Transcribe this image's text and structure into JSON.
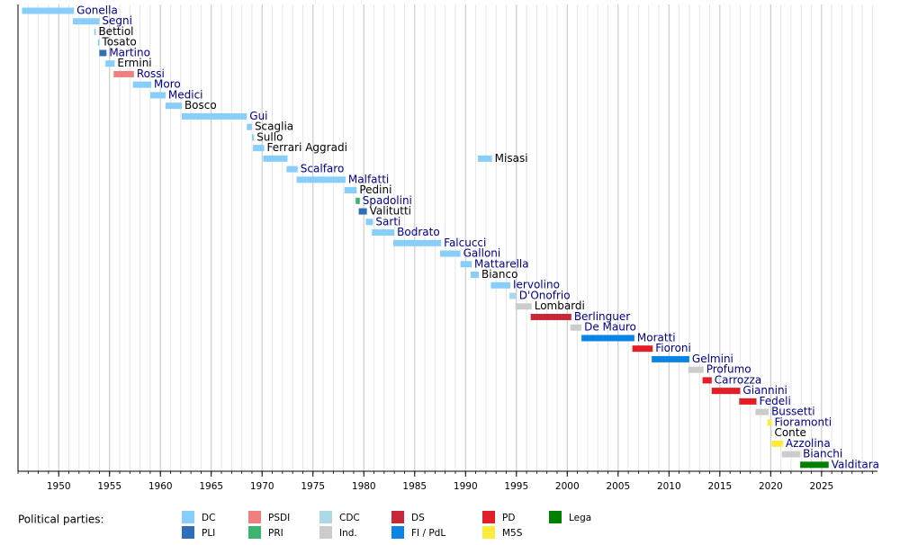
{
  "chart_data": {
    "type": "timeline",
    "xlim": [
      1946,
      2030.5
    ],
    "xticks": [
      1950,
      1955,
      1960,
      1965,
      1970,
      1975,
      1980,
      1985,
      1990,
      1995,
      2000,
      2005,
      2010,
      2015,
      2020,
      2025
    ],
    "minor_xticks": [
      1946,
      1947,
      1948,
      1949,
      1950,
      1951,
      1952,
      1953,
      1954,
      1955,
      1956,
      1957,
      1958,
      1959,
      1960,
      1961,
      1962,
      1963,
      1964,
      1965,
      1966,
      1967,
      1968,
      1969,
      1970,
      1971,
      1972,
      1973,
      1974,
      1975,
      1976,
      1977,
      1978,
      1979,
      1980,
      1981,
      1982,
      1983,
      1984,
      1985,
      1986,
      1987,
      1988,
      1989,
      1990,
      1991,
      1992,
      1993,
      1994,
      1995,
      1996,
      1997,
      1998,
      1999,
      2000,
      2001,
      2002,
      2003,
      2004,
      2005,
      2006,
      2007,
      2008,
      2009,
      2010,
      2011,
      2012,
      2013,
      2014,
      2015,
      2016,
      2017,
      2018,
      2019,
      2020,
      2021,
      2022,
      2023,
      2024,
      2025,
      2026,
      2027,
      2028,
      2029,
      2030
    ],
    "grid": true,
    "legend_title": "Political parties:",
    "parties": [
      {
        "name": "DC",
        "color": "#87cefa"
      },
      {
        "name": "PLI",
        "color": "#2f6fb8"
      },
      {
        "name": "PSDI",
        "color": "#f08080"
      },
      {
        "name": "PRI",
        "color": "#3cb371"
      },
      {
        "name": "CDC",
        "color": "#add8e6"
      },
      {
        "name": "Ind.",
        "color": "#cccccc"
      },
      {
        "name": "DS",
        "color": "#c72837"
      },
      {
        "name": "FI / PdL",
        "color": "#0a84e6"
      },
      {
        "name": "PD",
        "color": "#e31e24"
      },
      {
        "name": "M5S",
        "color": "#ffeb3b"
      },
      {
        "name": "Lega",
        "color": "#008000"
      }
    ],
    "rows": [
      {
        "name": "Gonella",
        "party": "DC",
        "label_color": "#00008b",
        "periods": [
          [
            1946.4,
            1951.5
          ]
        ]
      },
      {
        "name": "Segni",
        "party": "DC",
        "label_color": "#00008b",
        "periods": [
          [
            1951.4,
            1954.0
          ]
        ]
      },
      {
        "name": "Bettiol",
        "party": "DC",
        "label_color": "#000000",
        "periods": [
          [
            1953.5,
            1953.65
          ]
        ]
      },
      {
        "name": "Tosato",
        "party": "DC",
        "label_color": "#000000",
        "periods": [
          [
            1953.85,
            1954.0
          ]
        ]
      },
      {
        "name": "Martino",
        "party": "PLI",
        "label_color": "#00008b",
        "periods": [
          [
            1954.0,
            1954.7
          ]
        ]
      },
      {
        "name": "Ermini",
        "party": "DC",
        "label_color": "#000000",
        "periods": [
          [
            1954.6,
            1955.5
          ]
        ]
      },
      {
        "name": "Rossi",
        "party": "PSDI",
        "label_color": "#00008b",
        "periods": [
          [
            1955.4,
            1957.4
          ]
        ]
      },
      {
        "name": "Moro",
        "party": "DC",
        "label_color": "#00008b",
        "periods": [
          [
            1957.3,
            1959.1
          ]
        ]
      },
      {
        "name": "Medici",
        "party": "DC",
        "label_color": "#00008b",
        "periods": [
          [
            1959.0,
            1960.5
          ]
        ]
      },
      {
        "name": "Bosco",
        "party": "DC",
        "label_color": "#000000",
        "periods": [
          [
            1960.5,
            1962.1
          ]
        ]
      },
      {
        "name": "Gui",
        "party": "DC",
        "label_color": "#00008b",
        "periods": [
          [
            1962.1,
            1968.5
          ]
        ]
      },
      {
        "name": "Scaglia",
        "party": "DC",
        "label_color": "#000000",
        "periods": [
          [
            1968.5,
            1969.0
          ]
        ]
      },
      {
        "name": "Sullo",
        "party": "DC",
        "label_color": "#000000",
        "periods": [
          [
            1969.0,
            1969.2
          ]
        ]
      },
      {
        "name": "Ferrari Aggradi",
        "party": "DC",
        "label_color": "#000000",
        "periods": [
          [
            1969.1,
            1970.2
          ]
        ]
      },
      {
        "name": "Misasi",
        "party": "DC",
        "label_color": "#000000",
        "periods": [
          [
            1970.1,
            1972.5
          ],
          [
            1991.2,
            1992.6
          ]
        ]
      },
      {
        "name": "Scalfaro",
        "party": "DC",
        "label_color": "#00008b",
        "periods": [
          [
            1972.4,
            1973.5
          ]
        ]
      },
      {
        "name": "Malfatti",
        "party": "DC",
        "label_color": "#00008b",
        "periods": [
          [
            1973.4,
            1978.2
          ]
        ]
      },
      {
        "name": "Pedini",
        "party": "DC",
        "label_color": "#000000",
        "periods": [
          [
            1978.1,
            1979.3
          ]
        ]
      },
      {
        "name": "Spadolini",
        "party": "PRI",
        "label_color": "#00008b",
        "periods": [
          [
            1979.2,
            1979.6
          ]
        ]
      },
      {
        "name": "Valitutti",
        "party": "PLI",
        "label_color": "#000000",
        "periods": [
          [
            1979.5,
            1980.3
          ]
        ]
      },
      {
        "name": "Sarti",
        "party": "DC",
        "label_color": "#00008b",
        "periods": [
          [
            1980.2,
            1980.9
          ]
        ]
      },
      {
        "name": "Bodrato",
        "party": "DC",
        "label_color": "#00008b",
        "periods": [
          [
            1980.8,
            1983.0
          ]
        ]
      },
      {
        "name": "Falcucci",
        "party": "DC",
        "label_color": "#00008b",
        "periods": [
          [
            1982.9,
            1987.6
          ]
        ]
      },
      {
        "name": "Galloni",
        "party": "DC",
        "label_color": "#00008b",
        "periods": [
          [
            1987.5,
            1989.5
          ]
        ]
      },
      {
        "name": "Mattarella",
        "party": "DC",
        "label_color": "#00008b",
        "periods": [
          [
            1989.5,
            1990.6
          ]
        ]
      },
      {
        "name": "Bianco",
        "party": "DC",
        "label_color": "#000000",
        "periods": [
          [
            1990.5,
            1991.3
          ]
        ]
      },
      {
        "name": "Iervolino",
        "party": "DC",
        "label_color": "#00008b",
        "periods": [
          [
            1992.5,
            1994.4
          ]
        ]
      },
      {
        "name": "D'Onofrio",
        "party": "CDC",
        "label_color": "#00008b",
        "periods": [
          [
            1994.3,
            1995.0
          ]
        ]
      },
      {
        "name": "Lombardi",
        "party": "Ind.",
        "label_color": "#000000",
        "periods": [
          [
            1994.9,
            1996.5
          ]
        ]
      },
      {
        "name": "Berlinguer",
        "party": "DS",
        "label_color": "#00008b",
        "periods": [
          [
            1996.4,
            2000.4
          ]
        ]
      },
      {
        "name": "De Mauro",
        "party": "Ind.",
        "label_color": "#00008b",
        "periods": [
          [
            2000.3,
            2001.4
          ]
        ]
      },
      {
        "name": "Moratti",
        "party": "FI / PdL",
        "label_color": "#00008b",
        "periods": [
          [
            2001.4,
            2006.6
          ]
        ]
      },
      {
        "name": "Fioroni",
        "party": "PD",
        "label_color": "#00008b",
        "periods": [
          [
            2006.4,
            2008.4
          ]
        ]
      },
      {
        "name": "Gelmini",
        "party": "FI / PdL",
        "label_color": "#00008b",
        "periods": [
          [
            2008.3,
            2012.0
          ]
        ]
      },
      {
        "name": "Profumo",
        "party": "Ind.",
        "label_color": "#00008b",
        "periods": [
          [
            2011.9,
            2013.4
          ]
        ]
      },
      {
        "name": "Carrozza",
        "party": "PD",
        "label_color": "#00008b",
        "periods": [
          [
            2013.3,
            2014.2
          ]
        ]
      },
      {
        "name": "Giannini",
        "party": "PD",
        "label_color": "#00008b",
        "periods": [
          [
            2014.2,
            2017.0
          ]
        ]
      },
      {
        "name": "Fedeli",
        "party": "PD",
        "label_color": "#00008b",
        "periods": [
          [
            2016.9,
            2018.6
          ]
        ]
      },
      {
        "name": "Bussetti",
        "party": "Ind.",
        "label_color": "#00008b",
        "periods": [
          [
            2018.5,
            2019.8
          ]
        ]
      },
      {
        "name": "Fioramonti",
        "party": "M5S",
        "label_color": "#00008b",
        "periods": [
          [
            2019.7,
            2020.1
          ]
        ]
      },
      {
        "name": "Conte",
        "party": "Ind.",
        "label_color": "#000000",
        "periods": [
          [
            2020.0,
            2020.1
          ]
        ]
      },
      {
        "name": "Azzolina",
        "party": "M5S",
        "label_color": "#00008b",
        "periods": [
          [
            2020.1,
            2021.2
          ]
        ]
      },
      {
        "name": "Bianchi",
        "party": "Ind.",
        "label_color": "#00008b",
        "periods": [
          [
            2021.1,
            2022.9
          ]
        ]
      },
      {
        "name": "Valditara",
        "party": "Lega",
        "label_color": "#00008b",
        "periods": [
          [
            2022.9,
            2025.7
          ]
        ]
      }
    ]
  }
}
